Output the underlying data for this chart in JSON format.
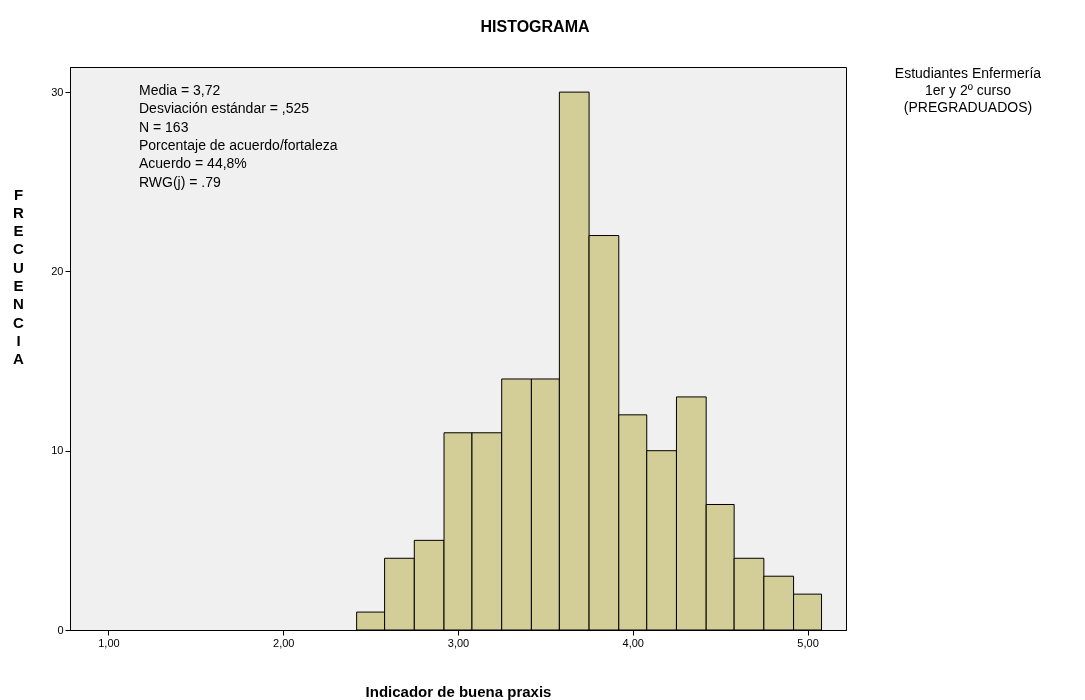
{
  "chart_data": {
    "type": "histogram",
    "title": "HISTOGRAMA",
    "xlabel": "Indicador de buena praxis",
    "ylabel": "FRECUENCIA",
    "bins": [
      2.42,
      2.58,
      2.75,
      2.92,
      3.08,
      3.25,
      3.42,
      3.58,
      3.75,
      3.92,
      4.08,
      4.25,
      4.42,
      4.58,
      4.75,
      4.92,
      5.08
    ],
    "values": [
      1,
      4,
      5,
      11,
      11,
      14,
      14,
      30,
      22,
      12,
      10,
      13,
      7,
      4,
      3,
      2
    ],
    "color": "#d3ce97",
    "xlim": [
      0.78,
      5.22
    ],
    "ylim": [
      0,
      31.4
    ],
    "xticks": [
      {
        "value": 1,
        "label": "1,00"
      },
      {
        "value": 2,
        "label": "2,00"
      },
      {
        "value": 3,
        "label": "3,00"
      },
      {
        "value": 4,
        "label": "4,00"
      },
      {
        "value": 5,
        "label": "5,00"
      }
    ],
    "yticks": [
      0,
      10,
      20,
      30
    ],
    "grid": false,
    "annotations": [
      "Media = 3,72\nDesviación estándar = ,525\nN = 163\nPorcentaje de acuerdo/fortaleza\nAcuerdo =  44,8%\nRWG(j) = .79",
      "Estudiantes Enfermería\n1er y 2º curso\n(PREGRADUADOS)"
    ]
  }
}
